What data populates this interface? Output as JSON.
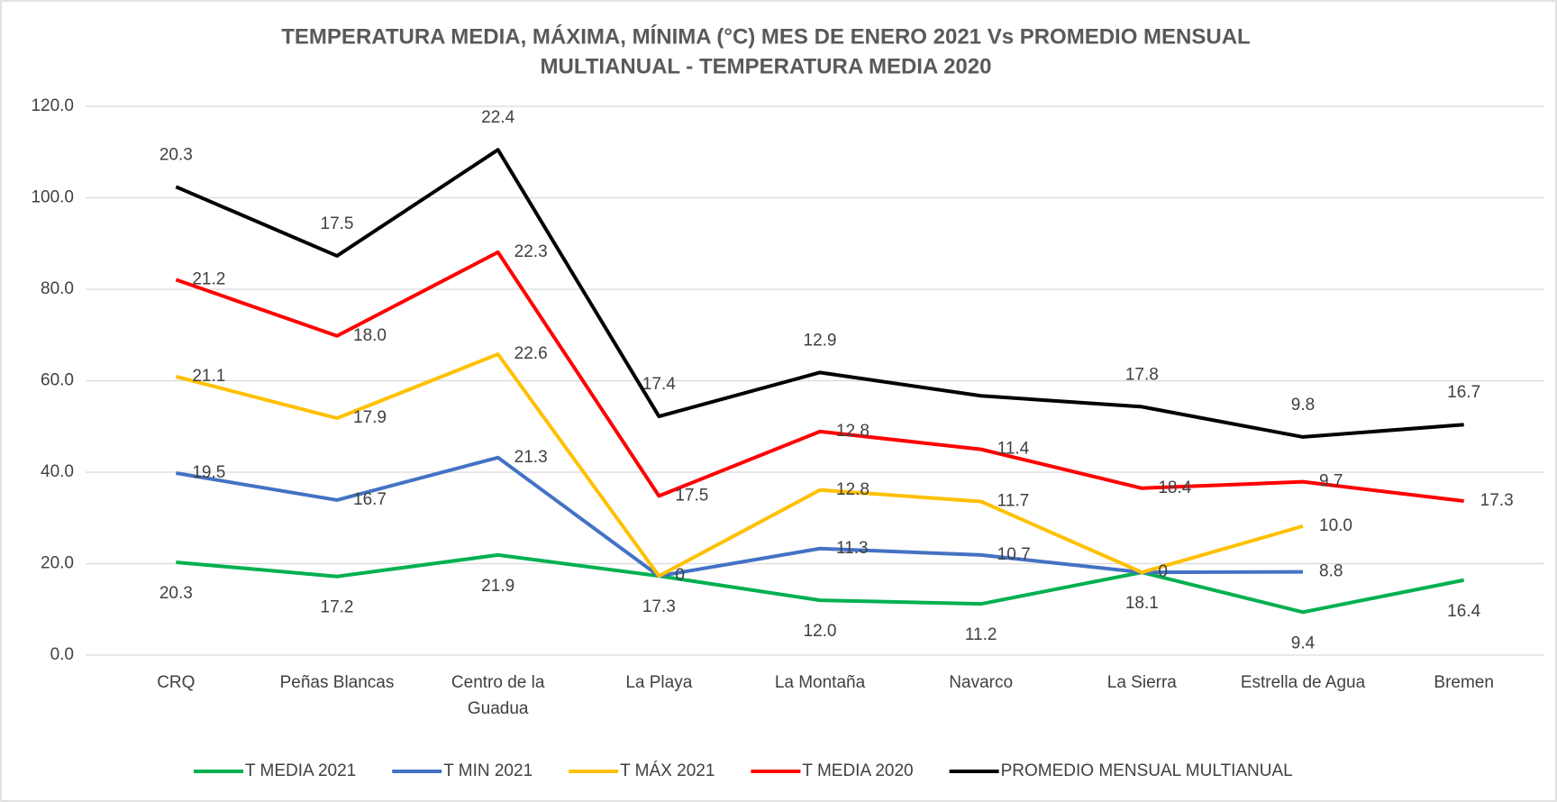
{
  "chart_data": {
    "type": "stacked_line",
    "title": [
      "TEMPERATURA MEDIA, MÁXIMA, MÍNIMA  (°C) MES DE ENERO 2021 Vs PROMEDIO MENSUAL",
      "MULTIANUAL  - TEMPERATURA MEDIA 2020"
    ],
    "categories": [
      "CRQ",
      "Peñas Blancas",
      "Centro de la Guadua",
      "La Playa",
      "La Montaña",
      "Navarco",
      "La Sierra",
      "Estrella de Agua",
      "Bremen"
    ],
    "series": [
      {
        "name": "T MEDIA 2021",
        "color": "#00b050",
        "label_position": "below",
        "values": [
          20.3,
          17.2,
          21.9,
          17.3,
          12.0,
          11.2,
          18.1,
          9.4,
          16.4
        ],
        "value_labels": [
          "20.3",
          "17.2",
          "21.9",
          "17.3",
          "12.0",
          "11.2",
          "18.1",
          "9.4",
          "16.4"
        ]
      },
      {
        "name": "T MIN 2021",
        "color": "#4472c4",
        "label_position": "right",
        "values": [
          19.5,
          16.7,
          21.3,
          0,
          11.3,
          10.7,
          0,
          8.8,
          null
        ],
        "value_labels": [
          "19.5",
          "16.7",
          "21.3",
          "0",
          "11.3",
          "10.7",
          "0",
          "8.8",
          null
        ]
      },
      {
        "name": "T MÁX 2021",
        "color": "#ffc000",
        "label_position": "right",
        "values": [
          21.1,
          17.9,
          22.6,
          0,
          12.8,
          11.7,
          0,
          10.0,
          null
        ],
        "value_labels": [
          "21.1",
          "17.9",
          "22.6",
          null,
          "12.8",
          "11.7",
          null,
          "10.0",
          null
        ]
      },
      {
        "name": "T MEDIA 2020",
        "color": "#ff0000",
        "label_position": "right",
        "values": [
          21.2,
          18.0,
          22.3,
          17.5,
          12.8,
          11.4,
          18.4,
          9.7,
          17.3
        ],
        "value_labels": [
          "21.2",
          "18.0",
          "22.3",
          "17.5",
          "12.8",
          "11.4",
          "18.4",
          "9.7",
          "17.3"
        ]
      },
      {
        "name": "PROMEDIO MENSUAL MULTIANUAL",
        "color": "#000000",
        "label_position": "above",
        "values": [
          20.3,
          17.5,
          22.4,
          17.4,
          12.9,
          11.7,
          17.8,
          9.8,
          16.7
        ],
        "value_labels": [
          "20.3",
          "17.5",
          "22.4",
          "17.4",
          "12.9",
          null,
          "17.8",
          "9.8",
          "16.7"
        ]
      }
    ],
    "ylim": [
      0,
      120
    ],
    "yticks": [
      {
        "value": 0,
        "label": "0.0"
      },
      {
        "value": 20,
        "label": "20.0"
      },
      {
        "value": 40,
        "label": "40.0"
      },
      {
        "value": 60,
        "label": "60.0"
      },
      {
        "value": 80,
        "label": "80.0"
      },
      {
        "value": 100,
        "label": "100.0"
      },
      {
        "value": 120,
        "label": "120.0"
      }
    ],
    "grid": true,
    "legend": "bottom"
  }
}
